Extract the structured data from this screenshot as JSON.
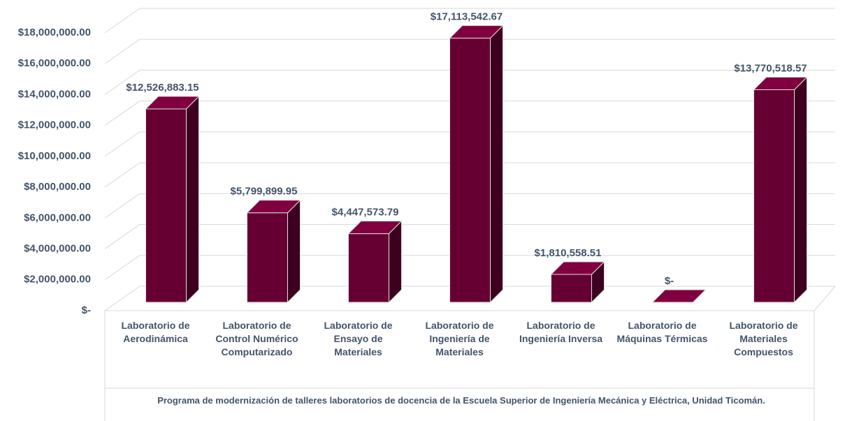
{
  "chart_data": {
    "type": "bar3d",
    "categories": [
      "Laboratorio de Aerodinámica",
      "Laboratorio de Control Numérico Computarizado",
      "Laboratorio de Ensayo de Materiales",
      "Laboratorio de Ingeniería de Materiales",
      "Laboratorio de Ingeniería Inversa",
      "Laboratorio de Máquinas Térmicas",
      "Laboratorio de Materiales Compuestos"
    ],
    "values": [
      12526883.15,
      5799899.95,
      4447573.79,
      17113542.67,
      1810558.51,
      0,
      13770518.57
    ],
    "value_labels": [
      "$12,526,883.15",
      "$5,799,899.95",
      "$4,447,573.79",
      "$17,113,542.67",
      "$1,810,558.51",
      "$-",
      "$13,770,518.57"
    ],
    "color": "#660033",
    "x_label": "Programa de modernización de talleres laboratorios de docencia de la Escuela Superior de Ingeniería Mecánica y Eléctrica, Unidad Ticomán.",
    "ylim": [
      0,
      18000000
    ],
    "yticks": [
      {
        "value": 0,
        "label": "$-"
      },
      {
        "value": 2000000,
        "label": "$2,000,000.00"
      },
      {
        "value": 4000000,
        "label": "$4,000,000.00"
      },
      {
        "value": 6000000,
        "label": "$6,000,000.00"
      },
      {
        "value": 8000000,
        "label": "$8,000,000.00"
      },
      {
        "value": 10000000,
        "label": "$10,000,000.00"
      },
      {
        "value": 12000000,
        "label": "$12,000,000.00"
      },
      {
        "value": 14000000,
        "label": "$14,000,000.00"
      },
      {
        "value": 16000000,
        "label": "$16,000,000.00"
      },
      {
        "value": 18000000,
        "label": "$18,000,000.00"
      }
    ],
    "grid": true
  }
}
